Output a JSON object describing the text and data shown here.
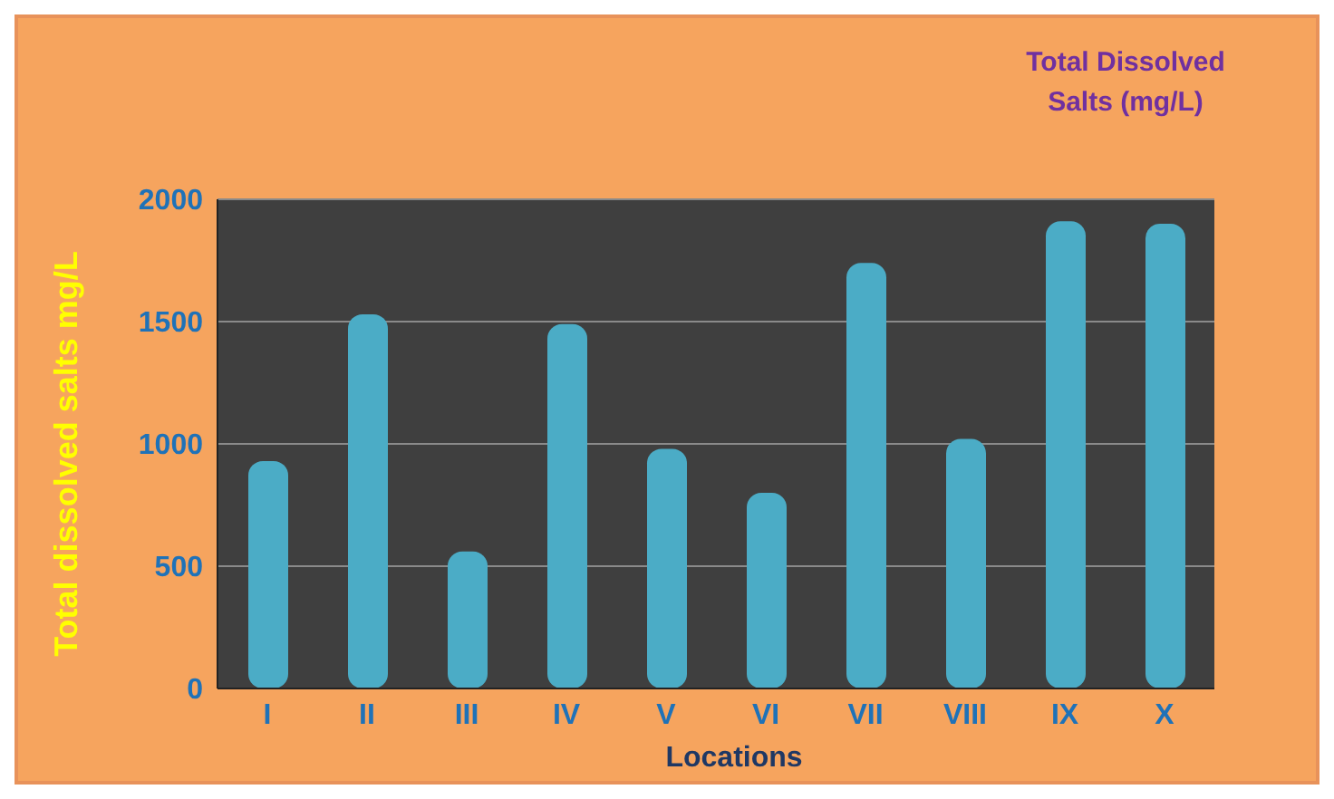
{
  "chart_data": {
    "type": "bar",
    "title": "Total Dissolved Salts (mg/L)",
    "xlabel": "Locations",
    "ylabel": "Total dissolved salts mg/L",
    "categories": [
      "I",
      "II",
      "III",
      "IV",
      "V",
      "VI",
      "VII",
      "VIII",
      "IX",
      "X"
    ],
    "values": [
      930,
      1530,
      560,
      1490,
      980,
      800,
      1740,
      1020,
      1910,
      1900
    ],
    "color": "#4bacc6",
    "ylim": [
      0,
      2000
    ],
    "yticks": [
      0,
      500,
      1000,
      1500,
      2000
    ],
    "grid": "y"
  }
}
